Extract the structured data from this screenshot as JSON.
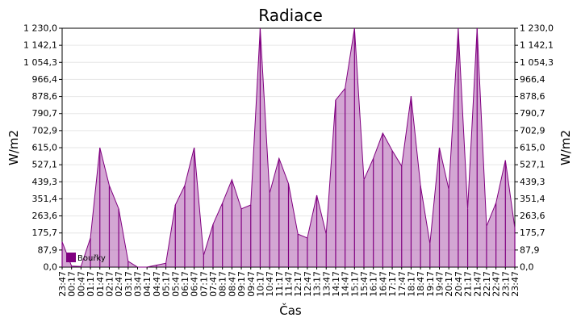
{
  "chart_data": {
    "type": "area",
    "title": "Radiace",
    "xlabel": "Čas",
    "ylabel": "W/m2",
    "ylim": [
      0,
      1230
    ],
    "y_ticks": [
      "0,0",
      "87,9",
      "175,7",
      "263,6",
      "351,4",
      "439,3",
      "527,1",
      "615,0",
      "702,9",
      "790,7",
      "878,6",
      "966,4",
      "1 054,3",
      "1 142,1",
      "1 230,0"
    ],
    "x_ticks": [
      "23:47",
      "00:17",
      "00:47",
      "01:17",
      "01:47",
      "02:17",
      "02:47",
      "03:17",
      "03:47",
      "04:17",
      "04:47",
      "05:17",
      "05:47",
      "06:17",
      "06:47",
      "07:17",
      "07:47",
      "08:17",
      "08:47",
      "09:17",
      "09:47",
      "10:17",
      "10:47",
      "11:17",
      "11:47",
      "12:17",
      "12:47",
      "13:17",
      "13:47",
      "14:17",
      "14:47",
      "15:17",
      "15:47",
      "16:17",
      "16:47",
      "17:17",
      "17:47",
      "18:17",
      "18:47",
      "19:17",
      "19:47",
      "20:17",
      "20:47",
      "21:17",
      "21:47",
      "22:17",
      "22:47",
      "23:17",
      "23:47"
    ],
    "grid": true,
    "legend_position": "bottom-left",
    "series": [
      {
        "name": "Bouřky",
        "color": "#800080",
        "x": [
          "23:47",
          "00:17",
          "00:47",
          "01:17",
          "01:47",
          "02:17",
          "02:47",
          "03:17",
          "03:47",
          "04:17",
          "04:47",
          "05:17",
          "05:47",
          "06:17",
          "06:47",
          "07:17",
          "07:47",
          "08:17",
          "08:47",
          "09:17",
          "09:47",
          "10:17",
          "10:47",
          "11:17",
          "11:47",
          "12:17",
          "12:47",
          "13:17",
          "13:47",
          "14:17",
          "14:47",
          "15:17",
          "15:47",
          "16:17",
          "16:47",
          "17:17",
          "17:47",
          "18:17",
          "18:47",
          "19:17",
          "19:47",
          "20:17",
          "20:47",
          "21:17",
          "21:47",
          "22:17",
          "22:47",
          "23:17",
          "23:47"
        ],
        "values": [
          130,
          5,
          3,
          150,
          615,
          420,
          300,
          30,
          0,
          0,
          10,
          20,
          320,
          420,
          615,
          60,
          220,
          330,
          450,
          300,
          320,
          1230,
          380,
          560,
          430,
          170,
          150,
          370,
          170,
          860,
          920,
          1230,
          450,
          560,
          690,
          600,
          520,
          880,
          420,
          120,
          615,
          400,
          1230,
          300,
          1230,
          210,
          330,
          550,
          200
        ]
      }
    ]
  }
}
